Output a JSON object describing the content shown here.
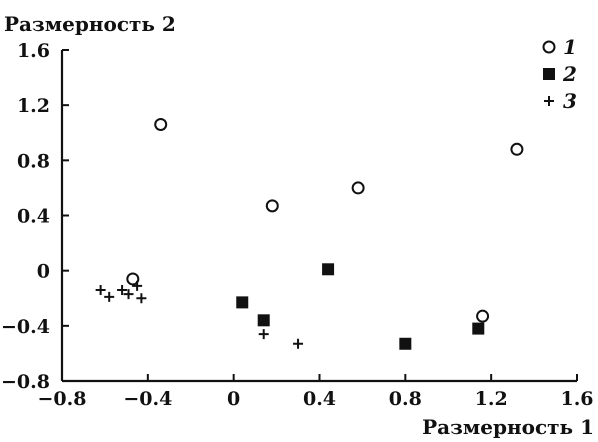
{
  "chart_data": {
    "type": "scatter",
    "ylabel": "Размерность 2",
    "xlabel": "Размерность 1",
    "xlim": [
      -0.8,
      1.6
    ],
    "ylim": [
      -0.8,
      1.6
    ],
    "xticks": [
      "−0.8",
      "−0.4",
      "0",
      "0.4",
      "0.8",
      "1.2",
      "1.6"
    ],
    "yticks": [
      "1.6",
      "1.2",
      "0.8",
      "0.4",
      "0",
      "−0.4",
      "−0.8"
    ],
    "xtick_values": [
      -0.8,
      -0.4,
      0,
      0.4,
      0.8,
      1.2,
      1.6
    ],
    "ytick_values": [
      1.6,
      1.2,
      0.8,
      0.4,
      0,
      -0.4,
      -0.8
    ],
    "grid": false,
    "legend_position": "top-right",
    "series": [
      {
        "name": "1",
        "marker": "open-circle",
        "color": "#111111",
        "points": [
          {
            "x": -0.34,
            "y": 1.06
          },
          {
            "x": 0.18,
            "y": 0.47
          },
          {
            "x": 0.58,
            "y": 0.6
          },
          {
            "x": 1.32,
            "y": 0.88
          },
          {
            "x": -0.47,
            "y": -0.06
          },
          {
            "x": 1.16,
            "y": -0.33
          }
        ]
      },
      {
        "name": "2",
        "marker": "filled-square",
        "color": "#111111",
        "points": [
          {
            "x": 0.04,
            "y": -0.23
          },
          {
            "x": 0.14,
            "y": -0.36
          },
          {
            "x": 0.44,
            "y": 0.01
          },
          {
            "x": 0.8,
            "y": -0.53
          },
          {
            "x": 1.14,
            "y": -0.42
          }
        ]
      },
      {
        "name": "3",
        "marker": "plus",
        "color": "#111111",
        "points": [
          {
            "x": -0.62,
            "y": -0.14
          },
          {
            "x": -0.58,
            "y": -0.19
          },
          {
            "x": -0.52,
            "y": -0.14
          },
          {
            "x": -0.49,
            "y": -0.17
          },
          {
            "x": -0.45,
            "y": -0.11
          },
          {
            "x": -0.43,
            "y": -0.2
          },
          {
            "x": 0.14,
            "y": -0.46
          },
          {
            "x": 0.3,
            "y": -0.53
          }
        ]
      }
    ]
  }
}
